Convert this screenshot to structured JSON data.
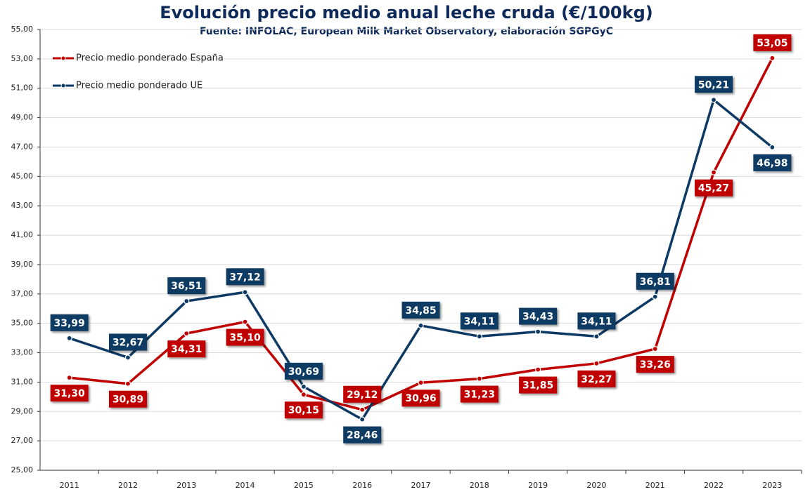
{
  "chart_data": {
    "type": "line",
    "title": "Evolución precio medio anual leche cruda (€/100kg)",
    "subtitle": "Fuente: INFOLAC, European Milk Market Observatory,  elaboración SGPGyC",
    "categories": [
      "2011",
      "2012",
      "2013",
      "2014",
      "2015",
      "2016",
      "2017",
      "2018",
      "2019",
      "2020",
      "2021",
      "2022",
      "2023"
    ],
    "series": [
      {
        "name": "Precio medio ponderado España",
        "color": "#c00000",
        "values": [
          31.3,
          30.89,
          34.31,
          35.1,
          30.15,
          29.12,
          30.96,
          31.23,
          31.85,
          32.27,
          33.26,
          45.27,
          53.05
        ],
        "value_labels": [
          "31,30",
          "30,89",
          "34,31",
          "35,10",
          "30,15",
          "29,12",
          "30,96",
          "31,23",
          "31,85",
          "32,27",
          "33,26",
          "45,27",
          "53,05"
        ]
      },
      {
        "name": "Precio medio ponderado UE",
        "color": "#0d3a64",
        "values": [
          33.99,
          32.67,
          36.51,
          37.12,
          30.69,
          28.46,
          34.85,
          34.11,
          34.43,
          34.11,
          36.81,
          50.21,
          46.98
        ],
        "value_labels": [
          "33,99",
          "32,67",
          "36,51",
          "37,12",
          "30,69",
          "28,46",
          "34,85",
          "34,11",
          "34,43",
          "34,11",
          "36,81",
          "50,21",
          "46,98"
        ]
      }
    ],
    "ylim": [
      25,
      55
    ],
    "yticks": [
      {
        "value": 25,
        "label": "25,00"
      },
      {
        "value": 27,
        "label": "27,00"
      },
      {
        "value": 29,
        "label": "29,00"
      },
      {
        "value": 31,
        "label": "31,00"
      },
      {
        "value": 33,
        "label": "33,00"
      },
      {
        "value": 35,
        "label": "35,00"
      },
      {
        "value": 37,
        "label": "37,00"
      },
      {
        "value": 39,
        "label": "39,00"
      },
      {
        "value": 41,
        "label": "41,00"
      },
      {
        "value": 43,
        "label": "43,00"
      },
      {
        "value": 45,
        "label": "45,00"
      },
      {
        "value": 47,
        "label": "47,00"
      },
      {
        "value": 49,
        "label": "49,00"
      },
      {
        "value": 51,
        "label": "51,00"
      },
      {
        "value": 53,
        "label": "53,00"
      },
      {
        "value": 55,
        "label": "55,00"
      }
    ],
    "grid": true,
    "legend": "upper left"
  }
}
